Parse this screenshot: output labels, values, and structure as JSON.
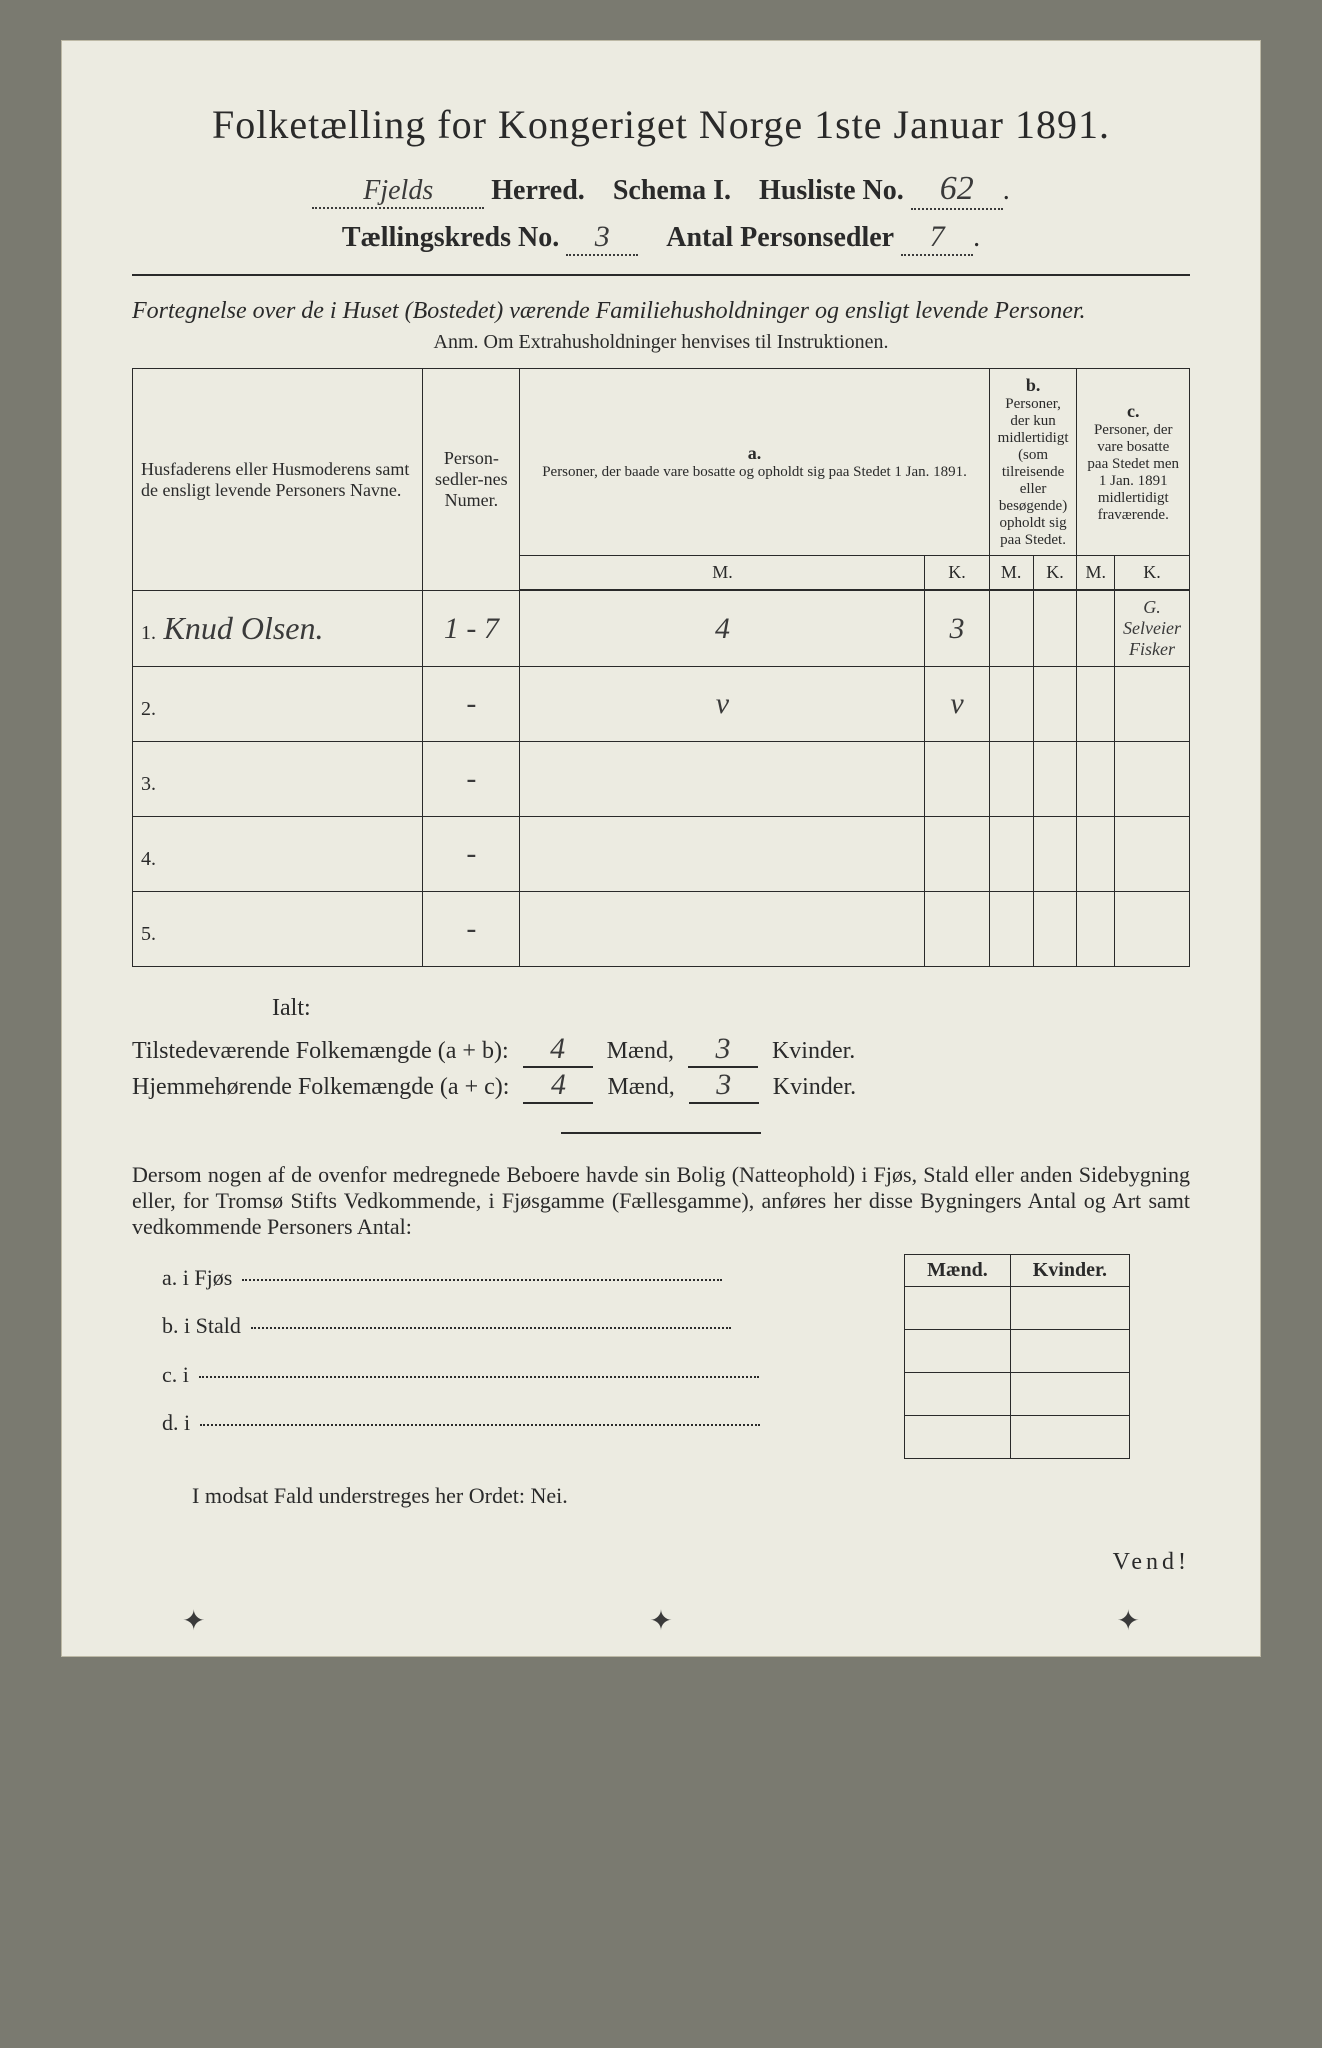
{
  "title": "Folketælling for Kongeriget Norge 1ste Januar 1891.",
  "header": {
    "herred_value": "Fjelds",
    "herred_label": "Herred.",
    "schema_label": "Schema I.",
    "husliste_label": "Husliste No.",
    "husliste_no": "62",
    "kreds_label": "Tællingskreds No.",
    "kreds_no": "3",
    "sedler_label": "Antal Personsedler",
    "sedler_no": "7"
  },
  "subtitle": "Fortegnelse over de i Huset (Bostedet) værende Familiehusholdninger og ensligt levende Personer.",
  "anm": "Anm.   Om Extrahusholdninger henvises til Instruktionen.",
  "table": {
    "col_names_hdr": "Husfaderens eller Husmoderens samt de ensligt levende Personers Navne.",
    "col_num_hdr": "Person-sedler-nes Numer.",
    "col_a_label": "a.",
    "col_a_text": "Personer, der baade vare bosatte og opholdt sig paa Stedet 1 Jan. 1891.",
    "col_b_label": "b.",
    "col_b_text": "Personer, der kun midlertidigt (som tilreisende eller besøgende) opholdt sig paa Stedet.",
    "col_c_label": "c.",
    "col_c_text": "Personer, der vare bosatte paa Stedet men 1 Jan. 1891 midlertidigt fraværende.",
    "mk_M": "M.",
    "mk_K": "K.",
    "rows": [
      {
        "n": "1.",
        "name": "Knud Olsen.",
        "num": "1 - 7",
        "aM": "4",
        "aK": "3",
        "bM": "",
        "bK": "",
        "cM": "",
        "cK": "G. Selveier Fisker"
      },
      {
        "n": "2.",
        "name": "",
        "num": "-",
        "aM": "v",
        "aK": "v",
        "bM": "",
        "bK": "",
        "cM": "",
        "cK": ""
      },
      {
        "n": "3.",
        "name": "",
        "num": "-",
        "aM": "",
        "aK": "",
        "bM": "",
        "bK": "",
        "cM": "",
        "cK": ""
      },
      {
        "n": "4.",
        "name": "",
        "num": "-",
        "aM": "",
        "aK": "",
        "bM": "",
        "bK": "",
        "cM": "",
        "cK": ""
      },
      {
        "n": "5.",
        "name": "",
        "num": "-",
        "aM": "",
        "aK": "",
        "bM": "",
        "bK": "",
        "cM": "",
        "cK": ""
      }
    ]
  },
  "totals": {
    "ialt": "Ialt:",
    "line1_label": "Tilstedeværende Folkemængde (a + b):",
    "line2_label": "Hjemmehørende Folkemængde (a + c):",
    "m_label": "Mænd,",
    "k_label": "Kvinder.",
    "l1_m": "4",
    "l1_k": "3",
    "l2_m": "4",
    "l2_k": "3"
  },
  "para": "Dersom nogen af de ovenfor medregnede Beboere havde sin Bolig (Natteophold) i Fjøs, Stald eller anden Sidebygning eller, for Tromsø Stifts Vedkommende, i Fjøsgamme (Fællesgamme), anføres her disse Bygningers Antal og Art samt vedkommende Personers Antal:",
  "mini": {
    "m": "Mænd.",
    "k": "Kvinder."
  },
  "abcd": {
    "a": "a.  i      Fjøs",
    "b": "b.  i      Stald",
    "c": "c.  i",
    "d": "d.  i"
  },
  "nei": "I modsat Fald understreges her Ordet: Nei.",
  "vend": "Vend!",
  "colors": {
    "paper": "#ecebe1",
    "ink": "#2a2a2a",
    "border": "#2a2a2a",
    "handwriting": "#3a3a3a",
    "page_bg": "#7a7a70"
  },
  "font_sizes_pt": {
    "title": 30,
    "header_lines": 21,
    "subtitle": 18,
    "table_body": 14,
    "totals": 18,
    "para": 16,
    "vend": 18
  }
}
